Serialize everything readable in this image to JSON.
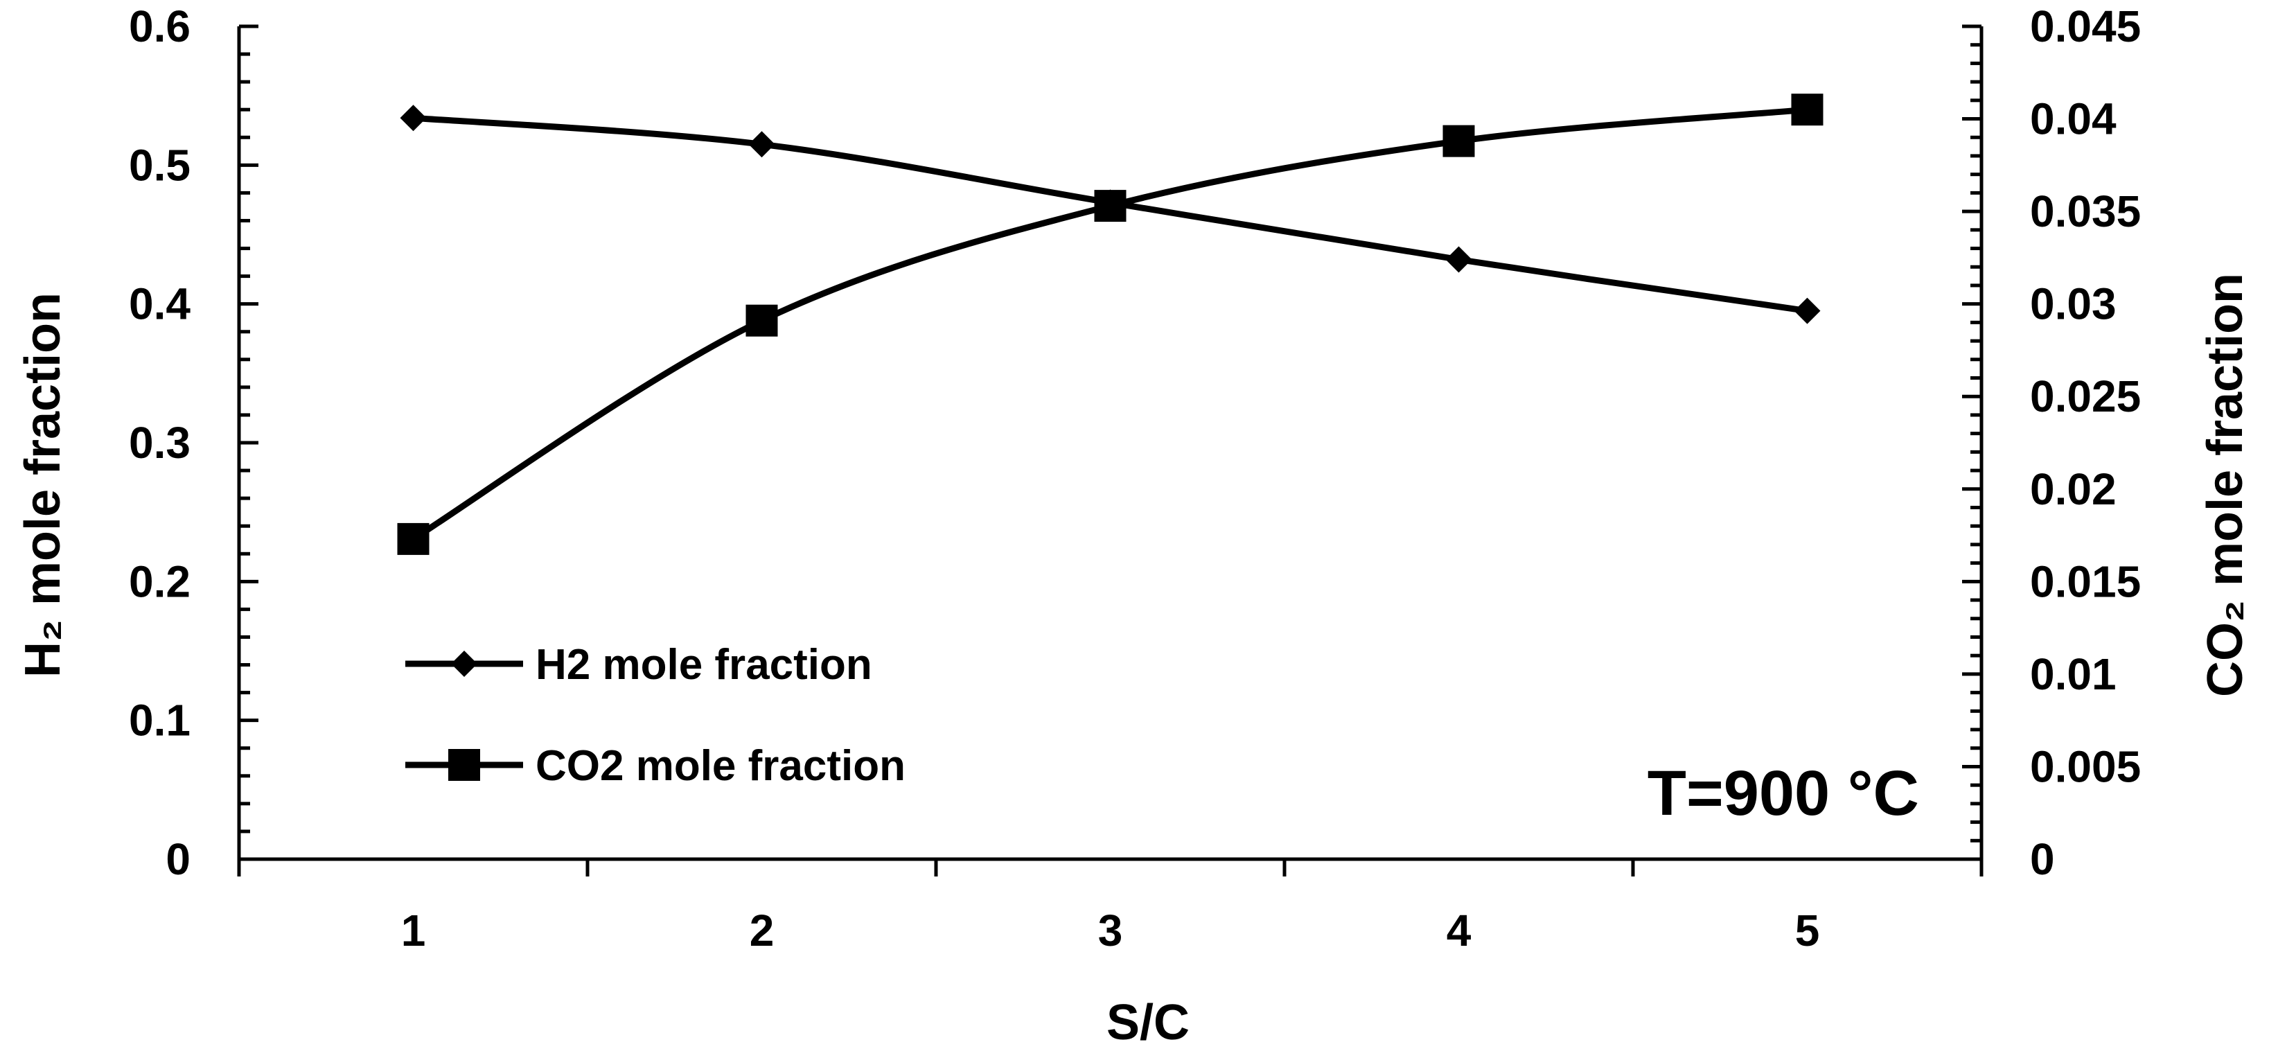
{
  "chart_data": {
    "type": "line",
    "x": [
      1,
      2,
      3,
      4,
      5
    ],
    "xlabel": "S/C",
    "ylabel_left": "H₂ mole fraction",
    "ylabel_right": "CO₂ mole fraction",
    "xlim": [
      0.5,
      5.5
    ],
    "ylim_left": [
      0,
      0.6
    ],
    "ylim_right": [
      0,
      0.045
    ],
    "x_ticks": [
      "1",
      "2",
      "3",
      "4",
      "5"
    ],
    "y_ticks_left": [
      "0",
      "0.1",
      "0.2",
      "0.3",
      "0.4",
      "0.5",
      "0.6"
    ],
    "y_ticks_right": [
      "0",
      "0.005",
      "0.01",
      "0.015",
      "0.02",
      "0.025",
      "0.03",
      "0.035",
      "0.04",
      "0.045"
    ],
    "series": [
      {
        "name": "H2 mole fraction",
        "axis": "left",
        "marker": "diamond",
        "color": "#000000",
        "values": [
          0.534,
          0.515,
          0.473,
          0.432,
          0.395
        ]
      },
      {
        "name": "CO2 mole fraction",
        "axis": "right",
        "marker": "square",
        "color": "#000000",
        "values": [
          0.0173,
          0.0291,
          0.0353,
          0.0388,
          0.0405
        ]
      }
    ],
    "annotation": "T=900 °C",
    "legend_position": "left",
    "grid": false
  }
}
